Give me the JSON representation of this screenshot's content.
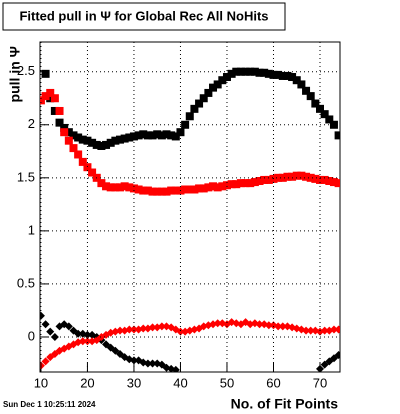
{
  "chart_data": {
    "type": "scatter",
    "title": "Fitted pull in  Ψ  for Global Rec All NoHits",
    "y_label": "pull in Ψ",
    "x_label": "No. of Fit Points",
    "footer": "Sun Dec  1 10:25:11 2024",
    "x": [
      10,
      11,
      12,
      13,
      14,
      15,
      16,
      17,
      18,
      19,
      20,
      21,
      22,
      23,
      24,
      25,
      26,
      27,
      28,
      29,
      30,
      31,
      32,
      33,
      34,
      35,
      36,
      37,
      38,
      39,
      40,
      41,
      42,
      43,
      44,
      45,
      46,
      47,
      48,
      49,
      50,
      51,
      52,
      53,
      54,
      55,
      56,
      57,
      58,
      59,
      60,
      61,
      62,
      63,
      64,
      65,
      66,
      67,
      68,
      69,
      70,
      71,
      72,
      73,
      74
    ],
    "series": [
      {
        "color": "#000000",
        "marker": "square",
        "values": [
          null,
          2.48,
          2.25,
          2.13,
          2.02,
          1.97,
          1.93,
          1.9,
          1.88,
          1.86,
          1.85,
          1.83,
          1.81,
          1.8,
          1.81,
          1.83,
          1.85,
          1.86,
          1.87,
          1.88,
          1.89,
          1.9,
          1.91,
          1.9,
          1.9,
          1.91,
          1.9,
          1.91,
          1.9,
          1.89,
          1.93,
          2.0,
          2.08,
          2.15,
          2.2,
          2.25,
          2.3,
          2.35,
          2.38,
          2.42,
          2.45,
          2.48,
          2.5,
          2.5,
          2.5,
          2.5,
          2.5,
          2.49,
          2.49,
          2.48,
          2.47,
          2.47,
          2.46,
          2.46,
          2.45,
          2.42,
          2.38,
          2.32,
          2.27,
          2.2,
          2.15,
          2.1,
          2.05,
          2.0,
          1.9
        ]
      },
      {
        "color": "#ff0000",
        "marker": "square",
        "values": [
          2.23,
          2.27,
          2.3,
          2.25,
          2.13,
          1.93,
          1.85,
          1.78,
          1.72,
          1.65,
          1.6,
          1.55,
          1.5,
          1.45,
          1.42,
          1.41,
          1.41,
          1.41,
          1.42,
          1.41,
          1.4,
          1.39,
          1.38,
          1.38,
          1.37,
          1.37,
          1.37,
          1.37,
          1.38,
          1.38,
          1.38,
          1.39,
          1.39,
          1.39,
          1.4,
          1.4,
          1.41,
          1.42,
          1.41,
          1.42,
          1.43,
          1.44,
          1.44,
          1.45,
          1.45,
          1.45,
          1.46,
          1.47,
          1.48,
          1.48,
          1.49,
          1.5,
          1.5,
          1.51,
          1.51,
          1.52,
          1.52,
          1.51,
          1.5,
          1.49,
          1.48,
          1.48,
          1.47,
          1.46,
          1.45
        ]
      },
      {
        "color": "#000000",
        "marker": "diamond",
        "values": [
          0.2,
          0.12,
          0.05,
          0.0,
          0.1,
          0.12,
          0.1,
          0.06,
          0.03,
          0.03,
          0.02,
          0.02,
          0.0,
          -0.03,
          -0.07,
          -0.1,
          -0.13,
          -0.16,
          -0.19,
          -0.21,
          -0.22,
          -0.22,
          -0.24,
          -0.25,
          -0.25,
          -0.25,
          -0.26,
          -0.29,
          -0.3,
          -0.31,
          null,
          null,
          null,
          null,
          null,
          null,
          null,
          null,
          null,
          null,
          null,
          null,
          null,
          null,
          null,
          null,
          null,
          null,
          null,
          null,
          null,
          null,
          null,
          null,
          null,
          null,
          null,
          null,
          null,
          null,
          -0.3,
          -0.26,
          -0.23,
          -0.2,
          -0.17
        ]
      },
      {
        "color": "#ff0000",
        "marker": "diamond",
        "values": [
          -0.27,
          -0.23,
          -0.19,
          -0.16,
          -0.13,
          -0.11,
          -0.09,
          -0.07,
          -0.05,
          -0.04,
          -0.04,
          -0.04,
          -0.03,
          0.0,
          0.02,
          0.04,
          0.05,
          0.06,
          0.06,
          0.07,
          0.07,
          0.07,
          0.08,
          0.08,
          0.09,
          0.09,
          0.1,
          0.1,
          0.09,
          0.07,
          0.05,
          0.05,
          0.06,
          0.07,
          0.08,
          0.1,
          0.11,
          0.12,
          0.13,
          0.13,
          0.12,
          0.14,
          0.13,
          0.12,
          0.14,
          0.12,
          0.13,
          0.12,
          0.12,
          0.11,
          0.11,
          0.1,
          0.1,
          0.1,
          0.09,
          0.08,
          0.07,
          0.06,
          0.06,
          0.06,
          0.05,
          0.06,
          0.06,
          0.07,
          0.07
        ]
      }
    ],
    "xlim": [
      9.8,
      74.3
    ],
    "xticks": [
      10,
      20,
      30,
      40,
      50,
      60,
      70
    ],
    "ylim": [
      -0.33,
      2.78
    ],
    "yticks": [
      0,
      0.5,
      1,
      1.5,
      2,
      2.5
    ],
    "grid": true
  }
}
